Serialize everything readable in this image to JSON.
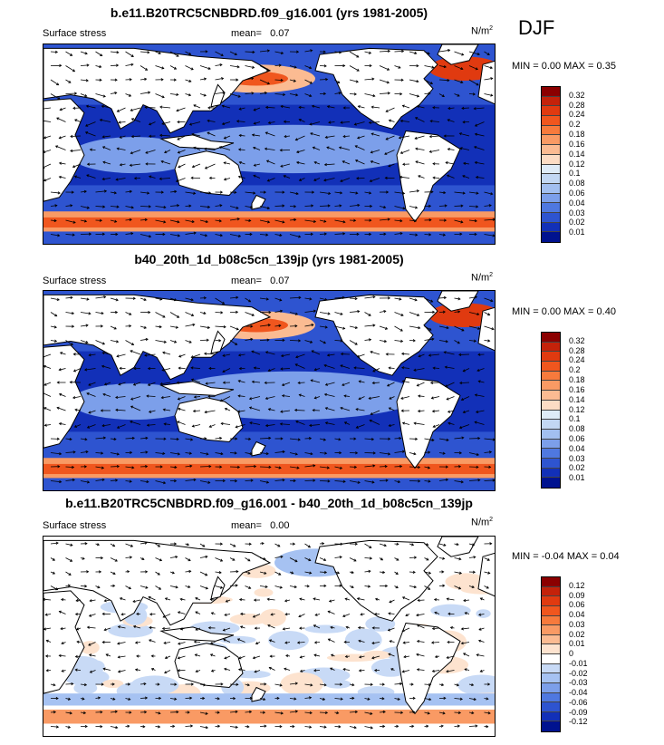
{
  "season": "DJF",
  "units": "N/m",
  "units_sup": "2",
  "panels": [
    {
      "title": "b.e11.B20TRC5CNBDRD.f09_g16.001 (yrs 1981-2005)",
      "variable": "Surface stress",
      "mean_label": "mean=",
      "mean": "0.07",
      "minmax": "MIN =   0.00 MAX =   0.35"
    },
    {
      "title": "b40_20th_1d_b08c5cn_139jp (yrs 1981-2005)",
      "variable": "Surface stress",
      "mean_label": "mean=",
      "mean": "0.07",
      "minmax": "MIN =   0.00 MAX =   0.40"
    },
    {
      "title": "b.e11.B20TRC5CNBDRD.f09_g16.001 - b40_20th_1d_b08c5cn_139jp",
      "variable": "Surface stress",
      "mean_label": "mean=",
      "mean": "0.00",
      "minmax": "MIN = -0.04 MAX =   0.04"
    }
  ],
  "colorbar_abs": {
    "labels": [
      "0.32",
      "0.28",
      "0.24",
      "0.2",
      "0.18",
      "0.16",
      "0.14",
      "0.12",
      "0.1",
      "0.08",
      "0.06",
      "0.04",
      "0.03",
      "0.02",
      "0.01"
    ],
    "colors": [
      "#8b0000",
      "#c4220a",
      "#e03a10",
      "#f0561e",
      "#f77a3c",
      "#f99a64",
      "#fbbb92",
      "#fcdcc4",
      "#deebf7",
      "#c2d7f3",
      "#a2bff0",
      "#7c9fea",
      "#4f78e0",
      "#2e54d0",
      "#1230b8",
      "#00128f"
    ]
  },
  "colorbar_diff": {
    "labels": [
      "0.12",
      "0.09",
      "0.06",
      "0.04",
      "0.03",
      "0.02",
      "0.01",
      "0",
      "-0.01",
      "-0.02",
      "-0.03",
      "-0.04",
      "-0.06",
      "-0.09",
      "-0.12"
    ],
    "colors": [
      "#8b0000",
      "#c4220a",
      "#e03a10",
      "#f0561e",
      "#f77a3c",
      "#f99a64",
      "#fbbb92",
      "#fde3cf",
      "#ffffff",
      "#c8daf6",
      "#a6c2f2",
      "#7c9fea",
      "#4f78e0",
      "#2e54d0",
      "#1230b8",
      "#00128f"
    ]
  }
}
